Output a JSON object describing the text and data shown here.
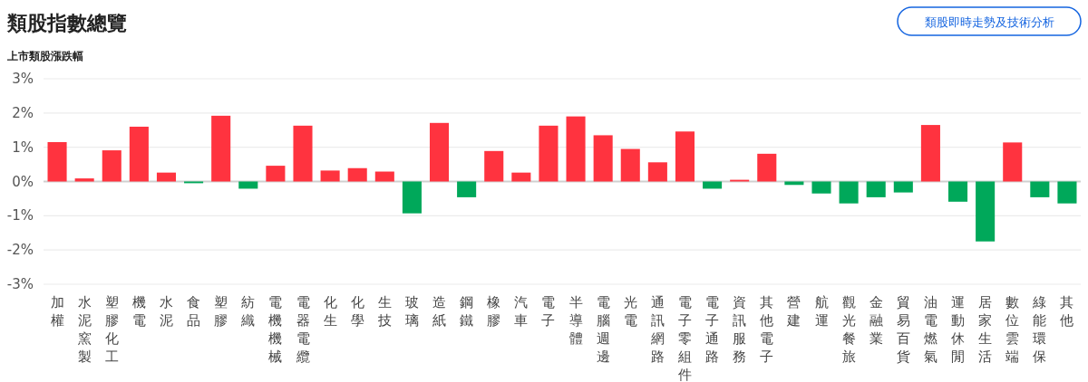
{
  "chart_data": {
    "type": "bar",
    "title": "類股指數總覽",
    "ylabel": "上市類股漲跌幅",
    "annotations": [
      "類股即時走勢及技術分析"
    ],
    "categories": [
      "加權",
      "水泥窯製",
      "塑膠化工",
      "機電",
      "水泥",
      "食品",
      "塑膠",
      "紡織",
      "電機機械",
      "電器電纜",
      "化生",
      "化學",
      "生技",
      "玻璃",
      "造紙",
      "鋼鐵",
      "橡膠",
      "汽車",
      "電子",
      "半導體",
      "電腦週邊",
      "光電",
      "通訊網路",
      "電子零組件",
      "電子通路",
      "資訊服務",
      "其他電子",
      "營建",
      "航運",
      "觀光餐旅",
      "金融業",
      "貿易百貨",
      "油電燃氣",
      "運動休閒",
      "居家生活",
      "數位雲端",
      "綠能環保",
      "其他"
    ],
    "values": [
      1.15,
      0.09,
      0.91,
      1.6,
      0.26,
      -0.05,
      1.92,
      -0.21,
      0.46,
      1.63,
      0.32,
      0.39,
      0.29,
      -0.93,
      1.71,
      -0.46,
      0.89,
      0.26,
      1.63,
      1.9,
      1.35,
      0.95,
      0.56,
      1.46,
      -0.21,
      0.05,
      0.81,
      -0.1,
      -0.35,
      -0.64,
      -0.46,
      -0.32,
      1.65,
      -0.59,
      -1.75,
      1.14,
      -0.46,
      -0.64
    ],
    "colors": [
      "#ff333f",
      "#ff333f",
      "#ff333f",
      "#ff333f",
      "#ff333f",
      "#00a85a",
      "#ff333f",
      "#00a85a",
      "#ff333f",
      "#ff333f",
      "#ff333f",
      "#ff333f",
      "#ff333f",
      "#00a85a",
      "#ff333f",
      "#00a85a",
      "#ff333f",
      "#ff333f",
      "#ff333f",
      "#ff333f",
      "#ff333f",
      "#ff333f",
      "#ff333f",
      "#ff333f",
      "#00a85a",
      "#ff333f",
      "#ff333f",
      "#00a85a",
      "#00a85a",
      "#00a85a",
      "#00a85a",
      "#00a85a",
      "#ff333f",
      "#00a85a",
      "#00a85a",
      "#ff333f",
      "#00a85a",
      "#00a85a"
    ],
    "ylim": [
      -3,
      3
    ],
    "yticks": [
      {
        "value": -3,
        "label": "-3%"
      },
      {
        "value": -2,
        "label": "-2%"
      },
      {
        "value": -1,
        "label": "-1%"
      },
      {
        "value": 0,
        "label": "0%"
      },
      {
        "value": 1,
        "label": "1%"
      },
      {
        "value": 2,
        "label": "2%"
      },
      {
        "value": 3,
        "label": "3%"
      }
    ],
    "grid": "y"
  }
}
